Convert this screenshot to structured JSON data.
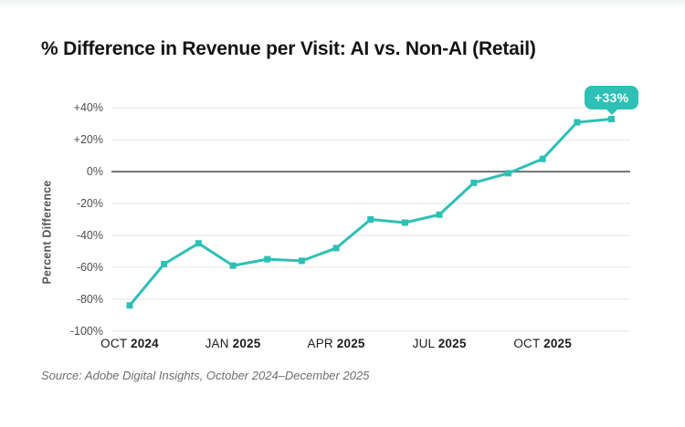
{
  "header": {
    "title": "% Difference in Revenue per Visit: AI vs. Non-AI (Retail)"
  },
  "chart_data": {
    "type": "line",
    "title": "% Difference in Revenue per Visit: AI vs. Non-AI (Retail)",
    "xlabel": "",
    "ylabel": "Percent Difference",
    "ylim": [
      -100,
      40
    ],
    "grid": true,
    "legend": "none",
    "categories": [
      "Oct 2024",
      "Nov 2024",
      "Dec 2024",
      "Jan 2025",
      "Feb 2025",
      "Mar 2025",
      "Apr 2025",
      "May 2025",
      "Jun 2025",
      "Jul 2025",
      "Aug 2025",
      "Sep 2025",
      "Oct 2025",
      "Nov 2025",
      "Dec 2025"
    ],
    "values": [
      -84,
      -58,
      -45,
      -59,
      -55,
      -56,
      -48,
      -30,
      -32,
      -27,
      -7,
      -1,
      8,
      31,
      33
    ],
    "y_ticks": [
      {
        "value": 40,
        "label": "+40%"
      },
      {
        "value": 20,
        "label": "+20%"
      },
      {
        "value": 0,
        "label": "0%"
      },
      {
        "value": -20,
        "label": "-20%"
      },
      {
        "value": -40,
        "label": "-40%"
      },
      {
        "value": -60,
        "label": "-60%"
      },
      {
        "value": -80,
        "label": "-80%"
      },
      {
        "value": -100,
        "label": "-100%"
      }
    ],
    "x_ticks": [
      {
        "index": 0,
        "month": "OCT",
        "year": "2024"
      },
      {
        "index": 3,
        "month": "JAN",
        "year": "2025"
      },
      {
        "index": 6,
        "month": "APR",
        "year": "2025"
      },
      {
        "index": 9,
        "month": "JUL",
        "year": "2025"
      },
      {
        "index": 12,
        "month": "OCT",
        "year": "2025"
      }
    ],
    "annotation": {
      "label": "+33%",
      "point_index": 14,
      "value": 33
    },
    "colors": {
      "line": "#2ec0b5",
      "badge": "#2ec0b5",
      "zero_line": "#707070",
      "gridline": "#e4e6e6"
    }
  },
  "footer": {
    "source": "Source: Adobe Digital Insights, October 2024–December 2025"
  }
}
